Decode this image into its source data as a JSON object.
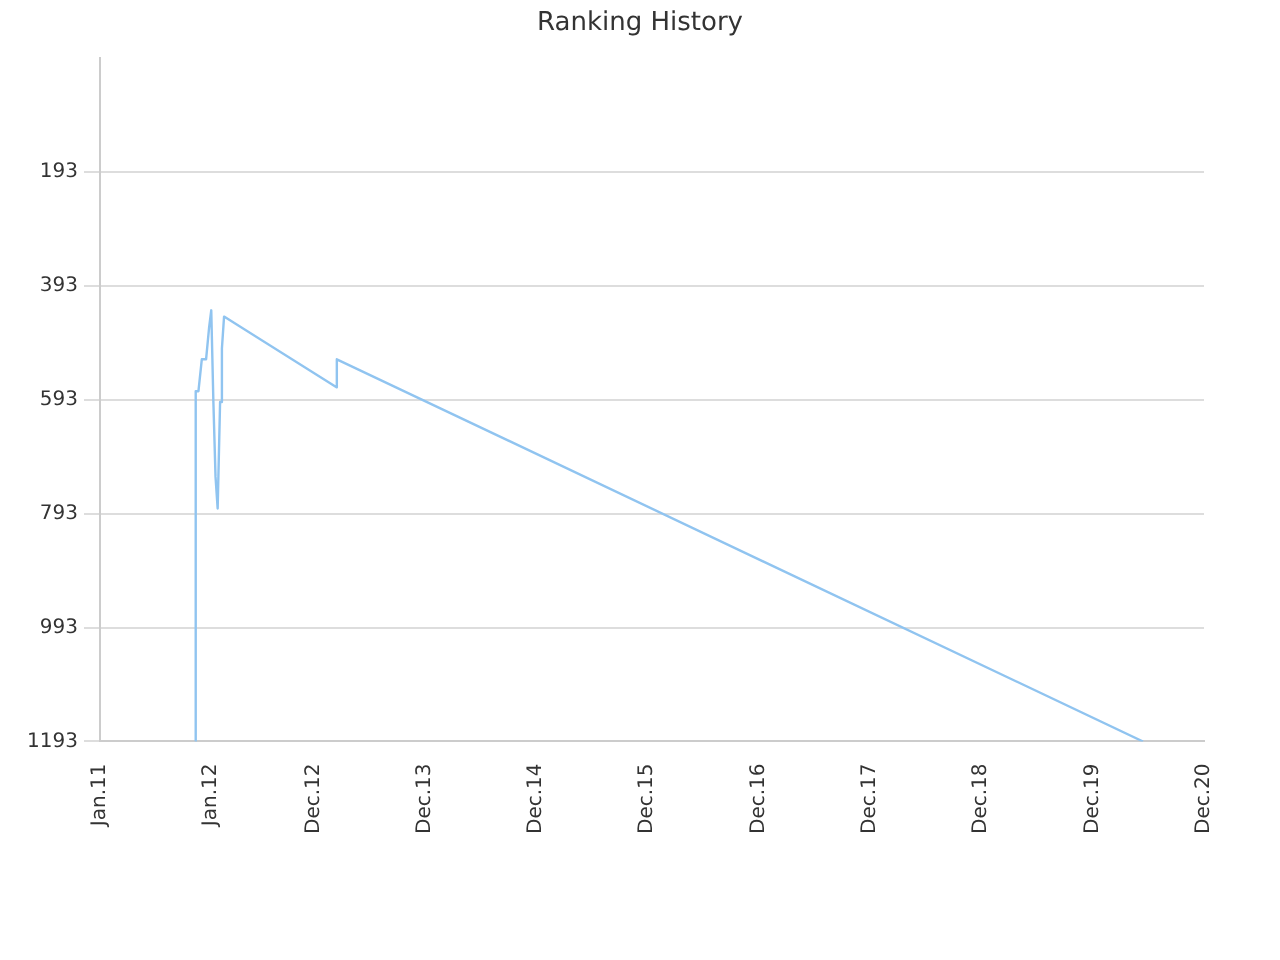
{
  "chart_data": {
    "type": "line",
    "title": "Ranking History",
    "x": [
      "2011-11-10",
      "2011-11-11",
      "2011-11-20",
      "2011-12-01",
      "2011-12-15",
      "2011-12-25",
      "2012-01-01",
      "2012-01-08",
      "2012-01-15",
      "2012-01-22",
      "2012-01-30",
      "2012-02-05",
      "2012-02-12",
      "2013-02-15",
      "2013-02-16",
      "2020-05-15"
    ],
    "series": [
      {
        "color": "#90c4f0",
        "values": [
          1193,
          578,
          578,
          522,
          522,
          466,
          436,
          597,
          728,
          784,
          597,
          503,
          447,
          571,
          522,
          1193
        ]
      }
    ],
    "xlim": [
      "2011-01",
      "2020-12"
    ],
    "xticks": [
      {
        "value": "2011-01",
        "label": "Jan.11"
      },
      {
        "value": "2012-01",
        "label": "Jan.12"
      },
      {
        "value": "2012-12",
        "label": "Dec.12"
      },
      {
        "value": "2013-12",
        "label": "Dec.13"
      },
      {
        "value": "2014-12",
        "label": "Dec.14"
      },
      {
        "value": "2015-12",
        "label": "Dec.15"
      },
      {
        "value": "2016-12",
        "label": "Dec.16"
      },
      {
        "value": "2017-12",
        "label": "Dec.17"
      },
      {
        "value": "2018-12",
        "label": "Dec.18"
      },
      {
        "value": "2019-12",
        "label": "Dec.19"
      },
      {
        "value": "2020-12",
        "label": "Dec.20"
      }
    ],
    "ylim": [
      1193,
      -7
    ],
    "yticks": [
      193,
      393,
      593,
      793,
      993,
      1193
    ],
    "grid": "y",
    "marker": "none",
    "line_style": "solid"
  }
}
